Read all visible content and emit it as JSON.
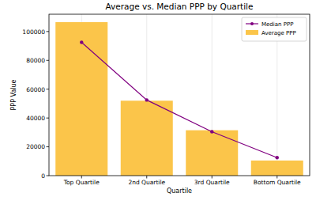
{
  "chart_data": {
    "type": "bar",
    "title": "Average vs. Median PPP by Quartile",
    "x_label": "Quartile",
    "y_label": "PPP Value",
    "categories": [
      "Top Quartile",
      "2nd Quartile",
      "3rd Quartile",
      "Bottom Quartile"
    ],
    "series": [
      {
        "name": "Average PPP",
        "type": "bar",
        "color": "#fbc54a",
        "values": [
          106500,
          52000,
          31500,
          10500
        ]
      },
      {
        "name": "Median PPP",
        "type": "line",
        "color": "#800080",
        "marker": "circle",
        "values": [
          92500,
          52500,
          30500,
          12500
        ]
      }
    ],
    "ylim": [
      0,
      112000
    ],
    "yticks": [
      0,
      20000,
      40000,
      60000,
      80000,
      100000
    ],
    "grid": "x",
    "legend": "upper right"
  }
}
